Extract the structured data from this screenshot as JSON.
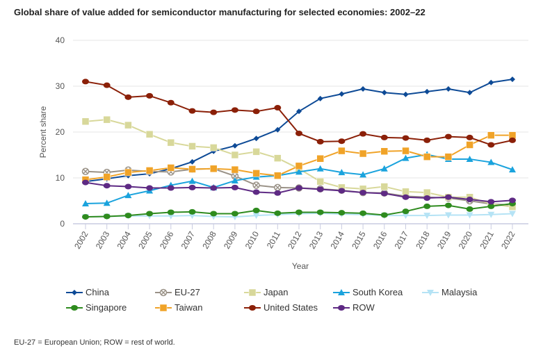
{
  "title": "Global share of value added for semiconductor manufacturing for selected economies: 2002–22",
  "note": "EU-27 = European Union; ROW = rest of world.",
  "chart_data": {
    "type": "line",
    "title": "Global share of value added for semiconductor manufacturing for selected economies: 2002–22",
    "xlabel": "Year",
    "ylabel": "Percent share",
    "ylim": [
      0,
      40
    ],
    "yticks": [
      0,
      10,
      20,
      30,
      40
    ],
    "grid": true,
    "legend": "bottom",
    "x": [
      "2002",
      "2003",
      "2004",
      "2005",
      "2006",
      "2007",
      "2008",
      "2009",
      "2010",
      "2011",
      "2012",
      "2013",
      "2014",
      "2015",
      "2016",
      "2017",
      "2018",
      "2019",
      "2020",
      "2021",
      "2022"
    ],
    "series": [
      {
        "name": "China",
        "color": "#0d4a96",
        "marker": "diamond",
        "values": [
          9.2,
          9.8,
          10.5,
          10.9,
          12,
          13.5,
          15.8,
          17,
          18.6,
          20.5,
          24.5,
          27.3,
          28.3,
          29.4,
          28.6,
          28.2,
          28.8,
          29.4,
          28.6,
          30.8,
          31.5
        ]
      },
      {
        "name": "EU-27",
        "color": "#9a9287",
        "marker": "x",
        "values": [
          11.4,
          11.2,
          11.7,
          11.4,
          11.3,
          11.9,
          12,
          10.4,
          8.4,
          7.9,
          7.8,
          7.6,
          7.3,
          6.8,
          6.7,
          6,
          5.8,
          5.6,
          5,
          4.3,
          4.1
        ]
      },
      {
        "name": "Japan",
        "color": "#d8d89a",
        "marker": "square",
        "values": [
          22.3,
          22.7,
          21.5,
          19.5,
          17.7,
          16.9,
          16.6,
          15,
          15.7,
          14.3,
          12,
          9.2,
          7.9,
          7.6,
          8.1,
          7,
          6.8,
          5.8,
          5.8,
          4.3,
          3.7
        ]
      },
      {
        "name": "South Korea",
        "color": "#1aa3dd",
        "marker": "triangle",
        "values": [
          4.4,
          4.5,
          6.2,
          7.2,
          8.4,
          9.3,
          7.9,
          9.4,
          10.2,
          10.5,
          11.3,
          12,
          11.2,
          10.7,
          12,
          14.3,
          15.1,
          14.1,
          14.1,
          13.4,
          11.8
        ]
      },
      {
        "name": "Malaysia",
        "color": "#b5e3f5",
        "marker": "triangle-down",
        "values": [
          1.5,
          1.6,
          1.7,
          1.7,
          1.7,
          1.8,
          1.6,
          1.5,
          1.8,
          2,
          2.2,
          2.3,
          2.1,
          2,
          1.8,
          1.8,
          1.8,
          1.9,
          1.9,
          2,
          2.2
        ]
      },
      {
        "name": "Singapore",
        "color": "#2e8b1e",
        "marker": "circle",
        "values": [
          1.5,
          1.6,
          1.8,
          2.2,
          2.5,
          2.6,
          2.2,
          2.2,
          2.9,
          2.3,
          2.5,
          2.5,
          2.4,
          2.3,
          1.9,
          2.7,
          3.8,
          4,
          3.2,
          3.8,
          4.4
        ]
      },
      {
        "name": "Taiwan",
        "color": "#f0a328",
        "marker": "square",
        "values": [
          9.6,
          10.2,
          11.2,
          11.6,
          12.2,
          11.9,
          12,
          11.8,
          11,
          10.5,
          12.6,
          14.2,
          15.9,
          15.3,
          15.8,
          15.9,
          14.6,
          14.6,
          17.2,
          19.3,
          19.3
        ]
      },
      {
        "name": "United States",
        "color": "#8b2008",
        "marker": "circle",
        "values": [
          31,
          30.2,
          27.6,
          27.9,
          26.4,
          24.6,
          24.3,
          24.8,
          24.5,
          25.3,
          19.7,
          17.9,
          18,
          19.6,
          18.8,
          18.7,
          18.2,
          19,
          18.8,
          17.2,
          18.2
        ]
      },
      {
        "name": "ROW",
        "color": "#5e2a84",
        "marker": "circle",
        "values": [
          9,
          8.3,
          8.1,
          7.8,
          7.8,
          7.9,
          7.8,
          7.9,
          6.9,
          6.7,
          7.8,
          7.5,
          7.2,
          6.8,
          6.6,
          5.8,
          5.6,
          5.8,
          5.3,
          4.8,
          5.1
        ]
      }
    ]
  }
}
